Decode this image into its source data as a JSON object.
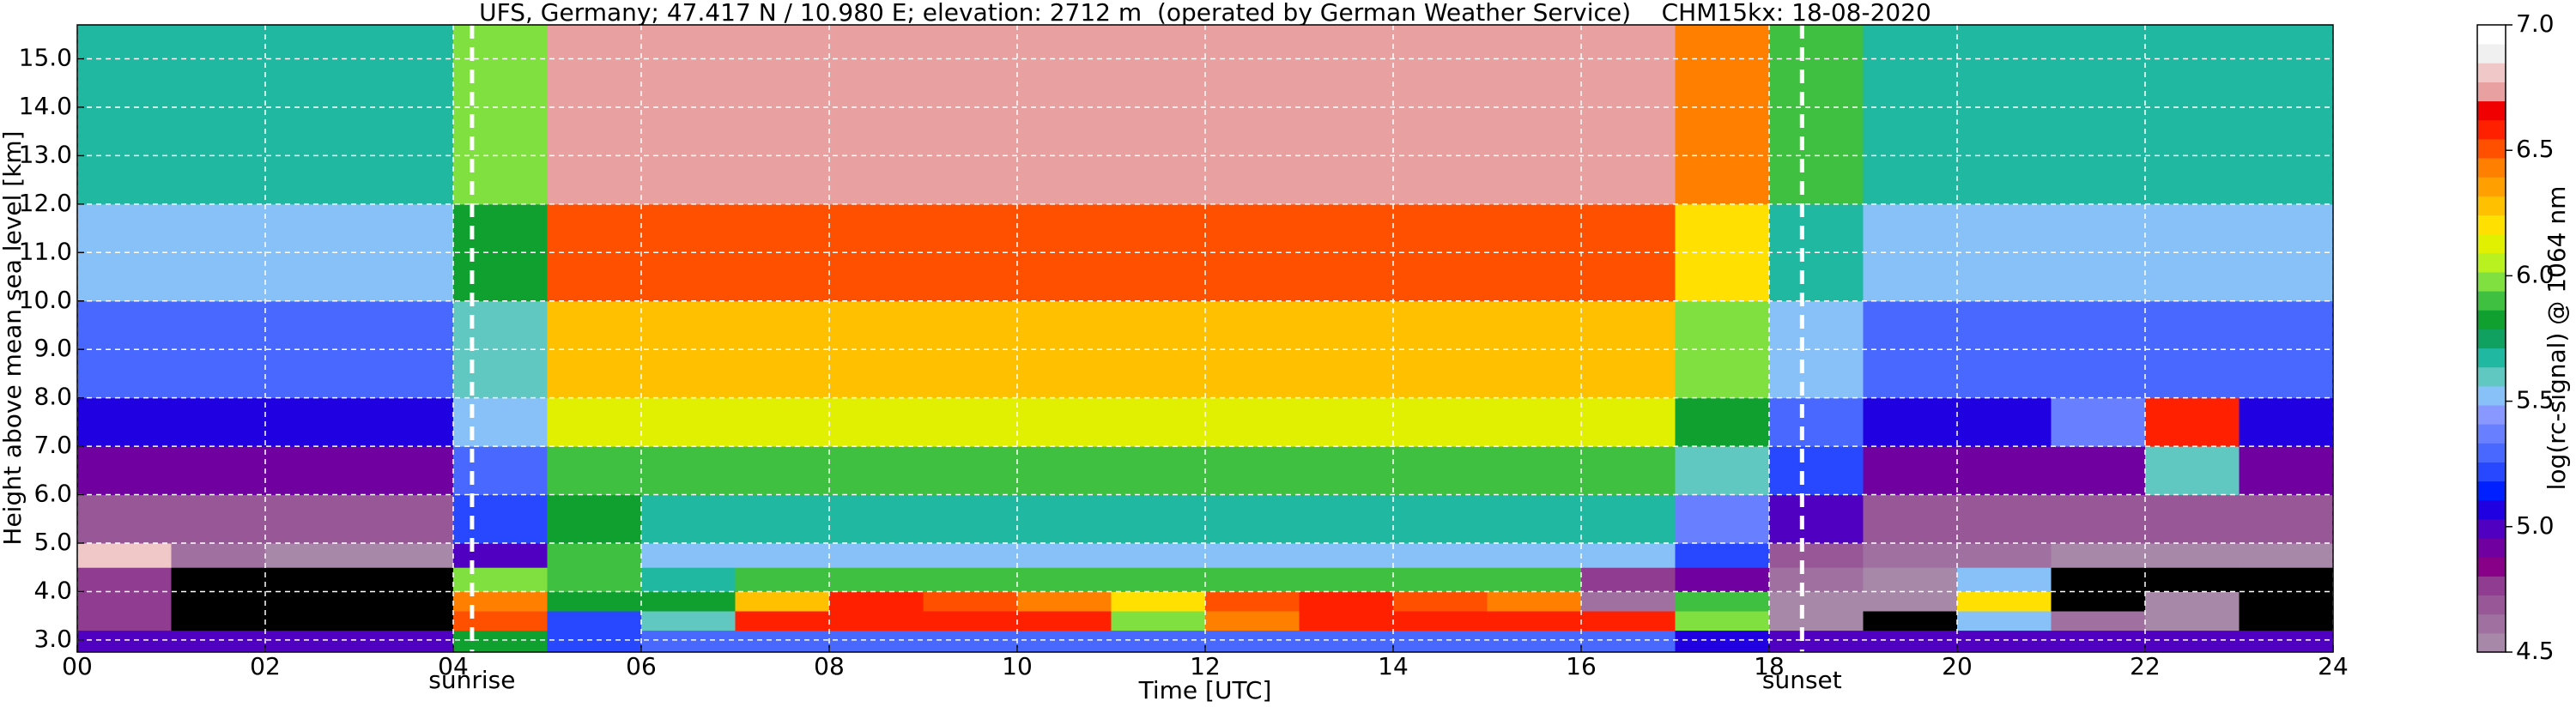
{
  "chart_data": {
    "type": "heatmap",
    "title": "UFS, Germany; 47.417 N / 10.980 E; elevation: 2712 m  (operated by German Weather Service)    CHM15kx: 18-08-2020",
    "x_label": "Time [UTC]",
    "y_label": "Height above mean sea level [km]",
    "xlim": [
      0,
      24
    ],
    "ylim": [
      2.75,
      15.7
    ],
    "xticks": [
      {
        "value": 0,
        "label": "00"
      },
      {
        "value": 2,
        "label": "02"
      },
      {
        "value": 4,
        "label": "04"
      },
      {
        "value": 6,
        "label": "06"
      },
      {
        "value": 8,
        "label": "08"
      },
      10,
      12,
      14,
      16,
      18,
      20,
      22,
      24
    ],
    "yticks": [
      {
        "value": 3,
        "label": "3.0"
      },
      {
        "value": 4,
        "label": "4.0"
      },
      {
        "value": 5,
        "label": "5.0"
      },
      {
        "value": 6,
        "label": "6.0"
      },
      {
        "value": 7,
        "label": "7.0"
      },
      {
        "value": 8,
        "label": "8.0"
      },
      {
        "value": 9,
        "label": "9.0"
      },
      {
        "value": 10,
        "label": "10.0"
      },
      {
        "value": 11,
        "label": "11.0"
      },
      {
        "value": 12,
        "label": "12.0"
      },
      {
        "value": 13,
        "label": "13.0"
      },
      {
        "value": 14,
        "label": "14.0"
      },
      {
        "value": 15,
        "label": "15.0"
      }
    ],
    "grid": true,
    "grid_color": "#ffffff",
    "x_bins": [
      0,
      1,
      2,
      3,
      4,
      5,
      6,
      7,
      8,
      9,
      10,
      11,
      12,
      13,
      14,
      15,
      16,
      17,
      18,
      19,
      20,
      21,
      22,
      23,
      24
    ],
    "y_bins": [
      2.75,
      3.2,
      3.6,
      4.0,
      4.5,
      5,
      6,
      7,
      8,
      10,
      12,
      15.7
    ],
    "values": [
      [
        5.0,
        5.0,
        5.0,
        5.0,
        5.8,
        5.2,
        5.3,
        5.3,
        5.3,
        5.3,
        5.3,
        5.3,
        5.3,
        5.3,
        5.3,
        5.3,
        5.3,
        5.1,
        5.0,
        5.0,
        5.0,
        5.0,
        5.0,
        5.0
      ],
      [
        4.8,
        4.4,
        4.4,
        4.4,
        6.5,
        5.2,
        5.6,
        6.6,
        6.6,
        6.6,
        6.6,
        6.0,
        6.4,
        6.6,
        6.6,
        6.6,
        6.6,
        6.0,
        4.5,
        4.4,
        5.5,
        4.6,
        4.5,
        4.4
      ],
      [
        4.8,
        4.4,
        4.4,
        4.4,
        6.4,
        5.8,
        5.8,
        6.3,
        6.6,
        6.5,
        6.4,
        6.2,
        6.5,
        6.6,
        6.5,
        6.4,
        4.6,
        5.9,
        4.5,
        4.5,
        6.2,
        4.4,
        4.5,
        4.4
      ],
      [
        4.8,
        4.4,
        4.4,
        4.4,
        6.0,
        5.9,
        5.7,
        5.9,
        5.9,
        5.9,
        5.9,
        5.9,
        5.9,
        5.9,
        5.9,
        5.9,
        4.8,
        4.9,
        4.6,
        4.5,
        5.5,
        4.4,
        4.4,
        4.4
      ],
      [
        6.8,
        4.6,
        4.5,
        4.5,
        5.0,
        5.9,
        5.5,
        5.5,
        5.5,
        5.5,
        5.5,
        5.5,
        5.5,
        5.5,
        5.5,
        5.5,
        5.5,
        5.2,
        4.7,
        4.6,
        4.6,
        4.5,
        4.5,
        4.5
      ],
      [
        4.7,
        4.7,
        4.7,
        4.7,
        5.2,
        5.8,
        5.7,
        5.7,
        5.7,
        5.7,
        5.7,
        5.7,
        5.7,
        5.7,
        5.7,
        5.7,
        5.7,
        5.4,
        5.0,
        4.7,
        4.7,
        4.7,
        4.7,
        4.7
      ],
      [
        4.9,
        4.9,
        4.9,
        4.9,
        5.3,
        5.9,
        5.9,
        5.9,
        5.9,
        5.9,
        5.9,
        5.9,
        5.9,
        5.9,
        5.9,
        5.9,
        5.9,
        5.6,
        5.2,
        4.9,
        4.9,
        4.9,
        5.6,
        4.9
      ],
      [
        5.1,
        5.1,
        5.1,
        5.1,
        5.5,
        6.1,
        6.1,
        6.1,
        6.1,
        6.1,
        6.1,
        6.1,
        6.1,
        6.1,
        6.1,
        6.1,
        6.1,
        5.8,
        5.3,
        5.1,
        5.1,
        5.4,
        6.6,
        5.1
      ],
      [
        5.3,
        5.3,
        5.3,
        5.3,
        5.6,
        6.3,
        6.3,
        6.3,
        6.3,
        6.3,
        6.3,
        6.3,
        6.3,
        6.3,
        6.3,
        6.3,
        6.3,
        6.0,
        5.5,
        5.3,
        5.3,
        5.3,
        5.3,
        5.3
      ],
      [
        5.5,
        5.5,
        5.5,
        5.5,
        5.8,
        6.5,
        6.5,
        6.5,
        6.5,
        6.5,
        6.5,
        6.5,
        6.5,
        6.5,
        6.5,
        6.5,
        6.5,
        6.2,
        5.7,
        5.5,
        5.5,
        5.5,
        5.5,
        5.5
      ],
      [
        5.7,
        5.7,
        5.7,
        5.7,
        6.0,
        6.7,
        6.7,
        6.7,
        6.7,
        6.7,
        6.7,
        6.7,
        6.7,
        6.7,
        6.7,
        6.7,
        6.7,
        6.4,
        5.9,
        5.7,
        5.7,
        5.7,
        5.7,
        5.7
      ]
    ],
    "under_color": "#000000",
    "annotations": [
      {
        "text": "sunrise",
        "x": 4.2
      },
      {
        "text": "sunset",
        "x": 18.35
      }
    ],
    "annotation_line_color": "#ffffff",
    "colorbar": {
      "label": "log(rc-signal) @ 1064 nm",
      "lim": [
        4.5,
        7.0
      ],
      "ticks": [
        4.5,
        {
          "value": 5,
          "label": "5.0"
        },
        5.5,
        {
          "value": 6,
          "label": "6.0"
        },
        6.5,
        {
          "value": 7,
          "label": "7.0"
        }
      ],
      "colors": [
        "#a888a8",
        "#a070a0",
        "#985898",
        "#903c90",
        "#880088",
        "#7000a0",
        "#5000c0",
        "#2000e0",
        "#0020ff",
        "#2848ff",
        "#4868ff",
        "#6880ff",
        "#8898ff",
        "#88c0f8",
        "#60c8c0",
        "#20b8a0",
        "#10a060",
        "#10a030",
        "#40c040",
        "#80e040",
        "#b8f020",
        "#e0f000",
        "#ffe000",
        "#ffc000",
        "#ffa000",
        "#ff8000",
        "#ff5000",
        "#ff2000",
        "#f00000",
        "#e8a0a0",
        "#f0c8c8",
        "#f0f0f0",
        "#ffffff"
      ]
    }
  }
}
